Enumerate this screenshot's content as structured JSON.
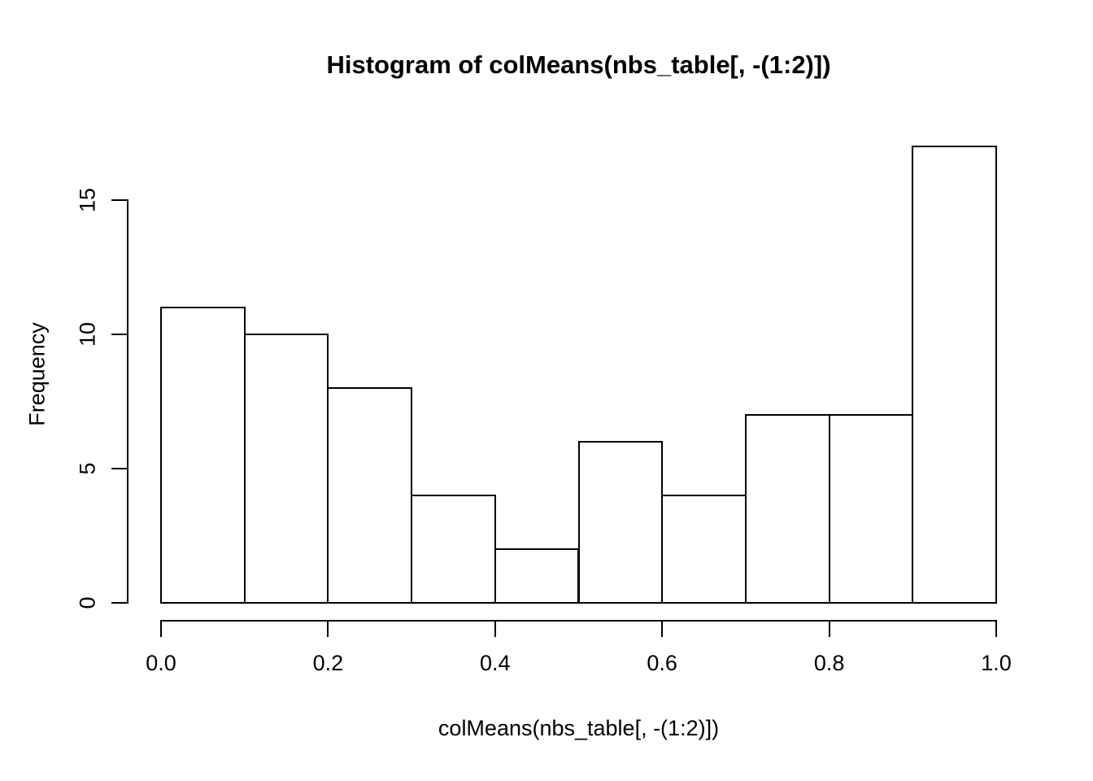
{
  "chart_data": {
    "type": "bar",
    "subtype": "histogram",
    "title": "Histogram of colMeans(nbs_table[, -(1:2)])",
    "xlabel": "colMeans(nbs_table[, -(1:2)])",
    "ylabel": "Frequency",
    "bin_edges": [
      0.0,
      0.1,
      0.2,
      0.3,
      0.4,
      0.5,
      0.6,
      0.7,
      0.8,
      0.9,
      1.0
    ],
    "values": [
      11,
      10,
      8,
      4,
      2,
      6,
      4,
      7,
      7,
      17
    ],
    "xlim": [
      0.0,
      1.0
    ],
    "ylim": [
      0,
      17
    ],
    "xticks": {
      "values": [
        0.0,
        0.2,
        0.4,
        0.6,
        0.8,
        1.0
      ],
      "labels": [
        "0.0",
        "0.2",
        "0.4",
        "0.6",
        "0.8",
        "1.0"
      ]
    },
    "yticks": {
      "values": [
        0,
        5,
        10,
        15
      ],
      "labels": [
        "0",
        "5",
        "10",
        "15"
      ]
    },
    "grid": "off",
    "legend": "none",
    "bar_fill": "#ffffff",
    "bar_border": "#000000",
    "axis_color": "#000000",
    "background": "#ffffff"
  }
}
